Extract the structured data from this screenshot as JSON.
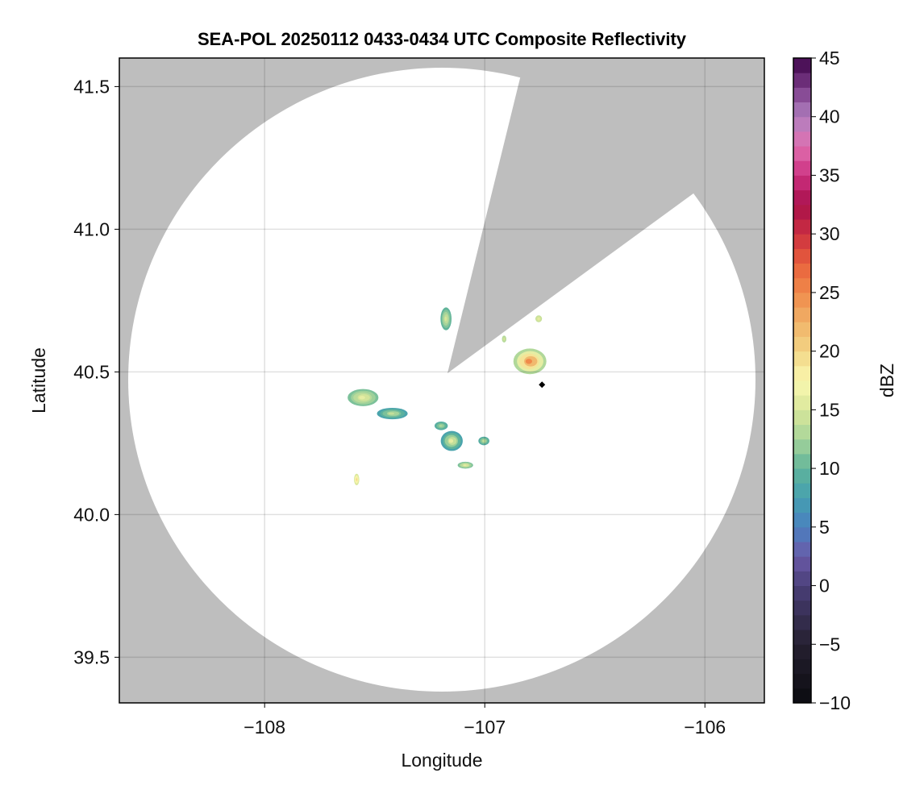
{
  "chart_data": {
    "type": "heatmap",
    "title": "SEA-POL 20250112 0433-0434 UTC Composite Reflectivity",
    "xlabel": "Longitude",
    "ylabel": "Latitude",
    "xlim": [
      -108.66,
      -105.73
    ],
    "ylim": [
      39.34,
      41.6
    ],
    "x_ticks": [
      -108,
      -107,
      -106
    ],
    "x_tick_labels": [
      "−108",
      "−107",
      "−106"
    ],
    "y_ticks": [
      39.5,
      40.0,
      40.5,
      41.0,
      41.5
    ],
    "y_tick_labels": [
      "39.5",
      "40.0",
      "40.5",
      "41.0",
      "41.5"
    ],
    "grid": true,
    "background_color": "#bebebe",
    "coverage_color": "#ffffff",
    "radar_center": {
      "lon": -107.18,
      "lat": 40.49
    },
    "colorbar": {
      "label": "dBZ",
      "range": [
        -10,
        45
      ],
      "ticks": [
        -10,
        -5,
        0,
        5,
        10,
        15,
        20,
        25,
        30,
        35,
        40,
        45
      ],
      "tick_labels": [
        "−10",
        "−5",
        "0",
        "5",
        "10",
        "15",
        "20",
        "25",
        "30",
        "35",
        "40",
        "45"
      ],
      "stops": [
        [
          -10,
          "#0b0b10"
        ],
        [
          -5,
          "#252030"
        ],
        [
          0,
          "#4a3f78"
        ],
        [
          2.5,
          "#6a5aa8"
        ],
        [
          5,
          "#4a80c0"
        ],
        [
          7.5,
          "#45a0b0"
        ],
        [
          10,
          "#60b49a"
        ],
        [
          12.5,
          "#a6d49a"
        ],
        [
          15,
          "#d8e69a"
        ],
        [
          17.5,
          "#faf8b0"
        ],
        [
          20,
          "#f2d585"
        ],
        [
          22.5,
          "#f0b268"
        ],
        [
          25,
          "#f08a4a"
        ],
        [
          27.5,
          "#e8603c"
        ],
        [
          30,
          "#cc3040"
        ],
        [
          32.5,
          "#a8104a"
        ],
        [
          35,
          "#cc3080"
        ],
        [
          37.5,
          "#e070b0"
        ],
        [
          40,
          "#b080c0"
        ],
        [
          42.5,
          "#7a3a88"
        ],
        [
          45,
          "#3e0549"
        ]
      ]
    },
    "echo_cells": [
      {
        "lon": -106.795,
        "lat": 40.537,
        "rlon": 0.075,
        "rlat": 0.045,
        "dbz_edge": 13,
        "dbz_core": 25
      },
      {
        "lon": -107.553,
        "lat": 40.41,
        "rlon": 0.07,
        "rlat": 0.03,
        "dbz_edge": 11,
        "dbz_core": 16
      },
      {
        "lon": -107.42,
        "lat": 40.354,
        "rlon": 0.07,
        "rlat": 0.02,
        "dbz_edge": 8,
        "dbz_core": 14
      },
      {
        "lon": -107.15,
        "lat": 40.258,
        "rlon": 0.05,
        "rlat": 0.035,
        "dbz_edge": 8,
        "dbz_core": 16
      },
      {
        "lon": -107.198,
        "lat": 40.311,
        "rlon": 0.03,
        "rlat": 0.015,
        "dbz_edge": 9,
        "dbz_core": 13
      },
      {
        "lon": -107.004,
        "lat": 40.258,
        "rlon": 0.025,
        "rlat": 0.015,
        "dbz_edge": 9,
        "dbz_core": 14
      },
      {
        "lon": -107.088,
        "lat": 40.173,
        "rlon": 0.035,
        "rlat": 0.012,
        "dbz_edge": 11,
        "dbz_core": 16
      },
      {
        "lon": -107.582,
        "lat": 40.123,
        "rlon": 0.012,
        "rlat": 0.02,
        "dbz_edge": 15,
        "dbz_core": 20
      },
      {
        "lon": -107.176,
        "lat": 40.686,
        "rlon": 0.025,
        "rlat": 0.04,
        "dbz_edge": 10,
        "dbz_core": 15
      },
      {
        "lon": -106.755,
        "lat": 40.686,
        "rlon": 0.015,
        "rlat": 0.012,
        "dbz_edge": 14,
        "dbz_core": 16
      },
      {
        "lon": -106.912,
        "lat": 40.615,
        "rlon": 0.01,
        "rlat": 0.012,
        "dbz_edge": 13,
        "dbz_core": 15
      }
    ],
    "marker": {
      "lon": -106.74,
      "lat": 40.455,
      "shape": "diamond",
      "color": "#000000"
    }
  }
}
